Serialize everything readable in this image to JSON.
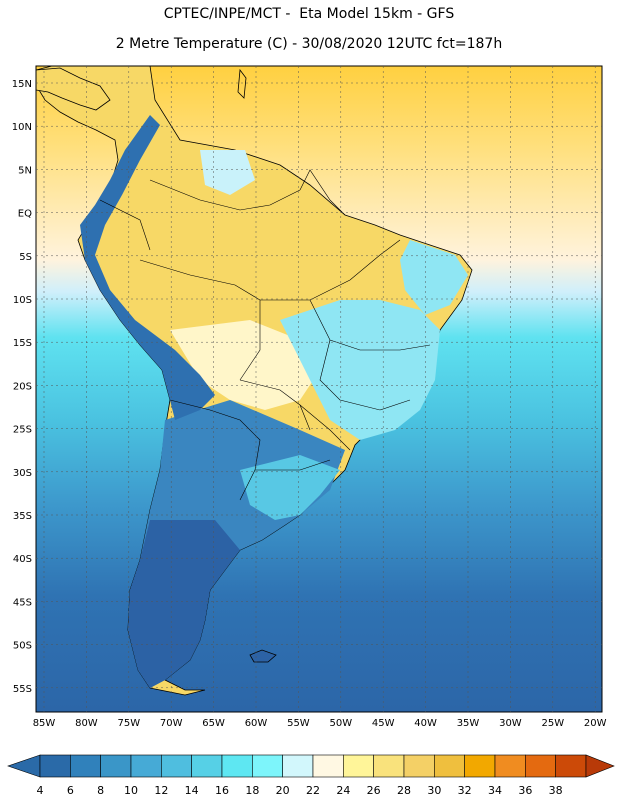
{
  "title": {
    "line1": "CPTEC/INPE/MCT -  Eta Model 15km - GFS",
    "line2": "2 Metre Temperature (C) - 30/08/2020 12UTC fct=187h"
  },
  "axes": {
    "lat_labels": [
      "15N",
      "10N",
      "5N",
      "EQ",
      "5S",
      "10S",
      "15S",
      "20S",
      "25S",
      "30S",
      "35S",
      "40S",
      "45S",
      "50S",
      "55S"
    ],
    "lon_labels": [
      "85W",
      "80W",
      "75W",
      "70W",
      "65W",
      "60W",
      "55W",
      "50W",
      "45W",
      "40W",
      "35W",
      "30W",
      "25W",
      "20W"
    ]
  },
  "colorbar": {
    "labels": [
      "4",
      "6",
      "8",
      "10",
      "12",
      "14",
      "16",
      "18",
      "20",
      "22",
      "24",
      "26",
      "28",
      "30",
      "32",
      "34",
      "36",
      "38"
    ],
    "colors": [
      "#2a6aa8",
      "#3081bb",
      "#3a96c8",
      "#46aad6",
      "#4fbedf",
      "#56d0e6",
      "#5ee7f2",
      "#7df5fb",
      "#d2f7fc",
      "#fff8e3",
      "#fff599",
      "#f9e27c",
      "#f4d066",
      "#efbf3e",
      "#f2a800",
      "#f08c20",
      "#e46a10",
      "#cc4a08",
      "#b83a08"
    ]
  },
  "map": {
    "ocean_gradient": [
      "#ffd040",
      "#ffdf7a",
      "#fff3dd",
      "#cfeffb",
      "#5fe2f0",
      "#4ac2e0",
      "#3d98cc",
      "#2f73b3",
      "#2c66a8"
    ],
    "land_warm": "#f7d866",
    "land_mild": "#fff6c9",
    "land_cool": "#74dcee",
    "andes": "#2e70b0",
    "patagonia": "#2c62a5"
  }
}
